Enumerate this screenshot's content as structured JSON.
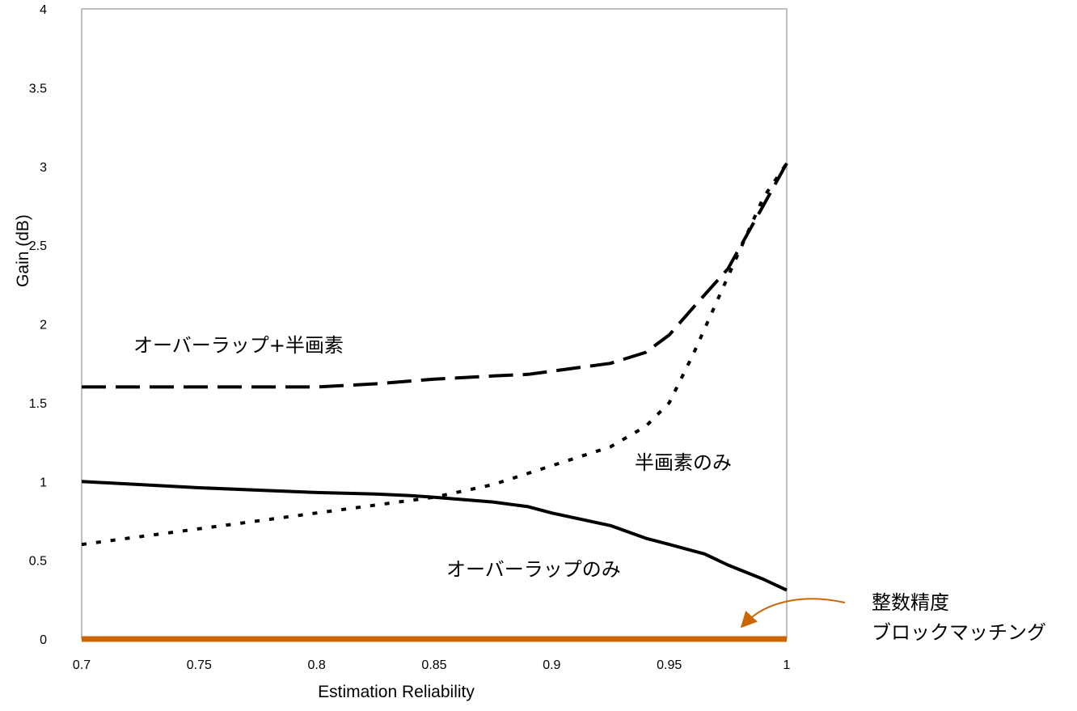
{
  "chart_data": {
    "type": "line",
    "xlabel": "Estimation Reliability",
    "ylabel": "Gain (dB)",
    "xlim": [
      0.7,
      1
    ],
    "ylim": [
      0,
      4
    ],
    "x_ticks": [
      "0.7",
      "0.75",
      "0.8",
      "0.85",
      "0.9",
      "0.95",
      "1"
    ],
    "y_ticks": [
      "0",
      "0.5",
      "1",
      "1.5",
      "2",
      "2.5",
      "3",
      "3.5",
      "4"
    ],
    "grid": false,
    "series": [
      {
        "name": "オーバーラップ+半画素",
        "style": "long-dash",
        "color": "#000000",
        "x": [
          0.7,
          0.75,
          0.8,
          0.825,
          0.85,
          0.875,
          0.89,
          0.9,
          0.925,
          0.94,
          0.95,
          0.96,
          0.975,
          0.99,
          1.0
        ],
        "y": [
          1.6,
          1.6,
          1.6,
          1.62,
          1.65,
          1.67,
          1.68,
          1.7,
          1.75,
          1.82,
          1.93,
          2.1,
          2.35,
          2.75,
          3.02
        ]
      },
      {
        "name": "半画素のみ",
        "style": "dotted",
        "color": "#000000",
        "x": [
          0.7,
          0.75,
          0.8,
          0.85,
          0.875,
          0.9,
          0.925,
          0.94,
          0.95,
          0.96,
          0.975,
          0.99,
          1.0
        ],
        "y": [
          0.6,
          0.7,
          0.8,
          0.9,
          0.98,
          1.1,
          1.22,
          1.35,
          1.5,
          1.8,
          2.3,
          2.8,
          3.02
        ]
      },
      {
        "name": "オーバーラップのみ",
        "style": "solid",
        "color": "#000000",
        "x": [
          0.7,
          0.75,
          0.8,
          0.825,
          0.84,
          0.85,
          0.875,
          0.89,
          0.9,
          0.925,
          0.94,
          0.95,
          0.965,
          0.975,
          0.99,
          1.0
        ],
        "y": [
          1.0,
          0.96,
          0.93,
          0.92,
          0.91,
          0.9,
          0.87,
          0.84,
          0.8,
          0.72,
          0.64,
          0.6,
          0.54,
          0.47,
          0.38,
          0.31
        ]
      },
      {
        "name": "整数精度 ブロックマッチング",
        "style": "solid-thick",
        "color": "#cc6600",
        "x": [
          0.7,
          1.0
        ],
        "y": [
          0,
          0
        ]
      }
    ],
    "annotations": [
      {
        "text": "オーバーラップ+半画素",
        "target": "long-dash"
      },
      {
        "text": "半画素のみ",
        "target": "dotted"
      },
      {
        "text": "オーバーラップのみ",
        "target": "solid"
      },
      {
        "text_lines": [
          "整数精度",
          "ブロックマッチング"
        ],
        "target": "baseline",
        "arrow_color": "#cc6600"
      }
    ]
  }
}
